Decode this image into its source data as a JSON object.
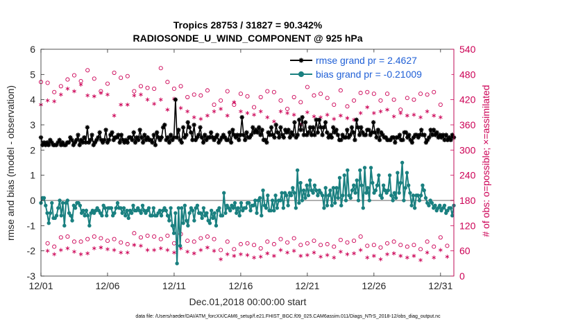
{
  "chart_data": {
    "type": "line",
    "title": "Tropics 28753 / 31827 = 90.342%",
    "subtitle": "RADIOSONDE_U_WIND_COMPONENT @ 925 hPa",
    "xlabel": "Dec.01,2018 00:00:00 start",
    "ylabel": "rmse and bias (model - observation)",
    "ylabel_right": "# of obs: o=possible; ×=assimilated",
    "footnote": "data file: /Users/raeder/DAI/ATM_forcXX/CAM6_setup/f.e21.FHIST_BGC.f09_025.CAM6assim.011/Diags_NTrS_2018-12/obs_diag_output.nc",
    "xlim": [
      1,
      32
    ],
    "ylim": [
      -3,
      6
    ],
    "ylim_right": [
      0,
      540
    ],
    "x_ticks": [
      1,
      6,
      11,
      16,
      21,
      26,
      31
    ],
    "x_tick_labels": [
      "12/01",
      "12/06",
      "12/11",
      "12/16",
      "12/21",
      "12/26",
      "12/31"
    ],
    "y_ticks": [
      -3,
      -2,
      -1,
      0,
      1,
      2,
      3,
      4,
      5,
      6
    ],
    "y_tick_labels": [
      "-3",
      "-2",
      "-1",
      "0",
      "1",
      "2",
      "3",
      "4",
      "5",
      "6"
    ],
    "y_ticks_right": [
      0,
      60,
      120,
      180,
      240,
      300,
      360,
      420,
      480,
      540
    ],
    "y_tick_labels_right": [
      "0",
      "60",
      "120",
      "180",
      "240",
      "300",
      "360",
      "420",
      "480",
      "540"
    ],
    "legend_position": "top-right",
    "zero_line": 0,
    "colors": {
      "rmse": "#000000",
      "bias": "#1a8080",
      "obs": "#cc0055",
      "zero": "#b0b0b0",
      "legend_text": "#1f5fd6"
    },
    "series": [
      {
        "name": "rmse grand pr = 2.4627",
        "axis": "left",
        "marker": "star",
        "values": [
          2.5,
          2.2,
          2.3,
          2.2,
          2.3,
          2.2,
          2.4,
          2.3,
          2.2,
          2.2,
          2.2,
          2.3,
          2.4,
          2.2,
          2.3,
          2.2,
          2.2,
          2.3,
          2.3,
          2.5,
          2.4,
          2.2,
          2.3,
          2.4,
          2.6,
          2.2,
          2.4,
          2.3,
          2.5,
          2.3,
          2.9,
          2.3,
          2.4,
          2.6,
          2.2,
          2.3,
          2.4,
          2.5,
          2.7,
          2.4,
          2.3,
          2.4,
          2.8,
          2.3,
          2.4,
          2.6,
          2.7,
          2.4,
          2.5,
          2.5,
          2.6,
          2.3,
          2.6,
          2.4,
          2.3,
          2.4,
          2.3,
          2.5,
          2.5,
          2.4,
          2.7,
          2.3,
          2.5,
          2.4,
          2.8,
          2.5,
          2.3,
          2.6,
          2.4,
          2.5,
          2.4,
          2.4,
          2.3,
          2.6,
          2.2,
          2.7,
          2.5,
          2.4,
          2.5,
          2.9,
          3.0,
          2.4,
          2.5,
          2.3,
          2.6,
          2.4,
          2.5,
          4.0,
          2.5,
          2.8,
          2.4,
          2.3,
          2.9,
          2.5,
          2.6,
          3.1,
          2.9,
          2.7,
          2.4,
          3.0,
          2.4,
          2.5,
          2.6,
          2.9,
          2.5,
          2.3,
          2.6,
          2.4,
          2.5,
          2.5,
          2.7,
          2.5,
          2.4,
          2.5,
          2.6,
          2.3,
          2.4,
          2.5,
          2.6,
          2.5,
          2.4,
          2.4,
          2.7,
          2.3,
          2.8,
          2.6,
          2.5,
          2.6,
          2.4,
          2.6,
          3.3,
          2.6,
          2.4,
          2.7,
          2.5,
          2.5,
          2.6,
          2.9,
          2.7,
          2.8,
          2.7,
          2.9,
          2.6,
          2.8,
          2.4,
          2.4,
          2.3,
          2.7,
          2.6,
          2.9,
          2.6,
          2.5,
          3.0,
          2.7,
          2.5,
          2.9,
          2.6,
          2.5,
          2.8,
          2.7,
          2.8,
          2.5,
          2.7,
          2.6,
          3.1,
          2.5,
          2.6,
          3.2,
          2.8,
          3.3,
          2.6,
          3.1,
          2.6,
          2.7,
          2.9,
          2.6,
          2.9,
          2.6,
          3.2,
          2.7,
          3.2,
          2.9,
          2.6,
          2.9,
          3.1,
          2.7,
          2.5,
          2.6,
          2.5,
          2.9,
          2.7,
          2.8,
          2.6,
          2.4,
          2.4,
          2.6,
          2.5,
          2.5,
          2.8,
          2.5,
          2.6,
          2.9,
          2.7,
          2.4,
          3.2,
          2.9,
          2.6,
          2.9,
          2.7,
          2.6,
          2.6,
          2.8,
          2.8,
          2.6,
          2.7,
          3.1,
          2.7,
          2.5,
          2.8,
          2.4,
          2.7,
          2.6,
          2.5,
          2.5,
          2.4,
          2.4,
          2.4,
          2.5,
          2.5,
          2.3,
          2.5,
          2.5,
          2.6,
          2.4,
          2.4,
          2.7,
          2.7,
          2.5,
          2.6,
          2.4,
          2.3,
          2.5,
          2.6,
          2.6,
          2.5,
          2.6,
          2.8,
          2.6,
          2.6,
          2.3,
          2.4,
          2.5,
          2.8,
          2.6,
          2.8,
          2.6,
          2.7,
          2.5,
          2.6,
          2.5,
          2.6,
          2.4,
          2.6,
          2.4,
          2.5,
          2.4,
          2.6,
          2.5
        ]
      },
      {
        "name": "bias grand pr = -0.21009",
        "axis": "left",
        "marker": "circle",
        "values": [
          -0.1,
          0.1,
          0.1,
          -0.2,
          -0.5,
          -0.9,
          -0.5,
          -0.1,
          -0.7,
          -0.7,
          -0.6,
          -0.3,
          0.0,
          -0.6,
          -0.1,
          -1.0,
          -0.1,
          0.0,
          -0.5,
          -0.6,
          -0.8,
          -0.2,
          -0.3,
          -0.1,
          -0.1,
          -0.2,
          -0.5,
          -0.4,
          -0.6,
          -0.4,
          -0.6,
          -1.0,
          -0.5,
          -0.4,
          -0.5,
          -0.4,
          -0.3,
          -0.4,
          -0.5,
          -0.6,
          -0.2,
          -0.3,
          -0.6,
          -0.3,
          -0.3,
          -0.3,
          -0.6,
          -0.5,
          -0.3,
          -0.1,
          -0.3,
          -0.3,
          -0.5,
          -0.3,
          -0.6,
          -0.4,
          -0.7,
          -0.4,
          -0.5,
          -0.2,
          -0.4,
          -0.4,
          -0.3,
          -0.4,
          -0.5,
          -0.2,
          -0.4,
          -0.5,
          -0.4,
          -0.3,
          -0.6,
          -0.6,
          -0.3,
          -0.6,
          -0.6,
          -0.5,
          -0.4,
          -0.6,
          -0.4,
          -0.3,
          -0.4,
          -0.6,
          -0.8,
          -0.3,
          -1.0,
          -1.3,
          -0.5,
          -2.5,
          -0.3,
          -1.8,
          -0.3,
          -0.9,
          -0.2,
          -0.8,
          -1.0,
          -0.5,
          -0.3,
          -0.4,
          -0.8,
          -0.3,
          -0.2,
          -0.5,
          -0.5,
          -0.7,
          -0.3,
          -0.6,
          -0.5,
          -0.8,
          -0.9,
          -0.4,
          -0.7,
          -0.5,
          -1.0,
          -0.4,
          -0.3,
          -0.6,
          -0.6,
          0.3,
          -0.5,
          -0.2,
          -0.3,
          -0.4,
          -0.2,
          -0.3,
          -0.1,
          -0.5,
          -0.3,
          -0.6,
          -0.1,
          -0.4,
          -0.3,
          -0.3,
          -0.1,
          -0.1,
          -0.4,
          -0.2,
          -0.2,
          0.0,
          -0.5,
          0.0,
          0.1,
          -0.6,
          0.4,
          -0.2,
          -0.3,
          0.2,
          -0.4,
          -0.4,
          0.0,
          -0.4,
          0.2,
          -0.3,
          0.0,
          0.0,
          0.3,
          -0.3,
          0.3,
          0.2,
          -0.2,
          0.3,
          0.2,
          0.5,
          0.3,
          -0.3,
          1.2,
          -0.1,
          0.7,
          0.0,
          0.4,
          0.1,
          0.6,
          0.2,
          0.8,
          0.4,
          0.3,
          0.6,
          0.4,
          0.2,
          0.4,
          0.3,
          0.2,
          -0.3,
          0.5,
          -0.2,
          0.2,
          0.4,
          -0.2,
          0.5,
          -0.1,
          0.5,
          0.1,
          0.9,
          -0.2,
          0.2,
          1.0,
          0.0,
          1.2,
          0.2,
          0.1,
          0.4,
          0.6,
          0.3,
          0.8,
          0.0,
          1.2,
          0.6,
          -0.3,
          1.3,
          0.3,
          0.5,
          0.0,
          1.3,
          0.7,
          0.3,
          0.4,
          0.6,
          1.0,
          0.2,
          0.1,
          0.6,
          0.4,
          0.3,
          0.4,
          1.0,
          0.2,
          0.0,
          0.3,
          0.1,
          1.1,
          0.3,
          0.7,
          1.5,
          0.0,
          0.5,
          1.1,
          0.6,
          0.3,
          -0.2,
          0.2,
          -0.3,
          0.2,
          0.2,
          0.0,
          0.2,
          0.6,
          0.4,
          0.1,
          -0.1,
          -0.2,
          0.0,
          -0.1,
          -0.3,
          -0.2,
          -0.4,
          -0.3,
          -0.2,
          -0.4,
          -0.3,
          -0.2,
          -0.5,
          -0.4,
          -0.3,
          -0.3,
          -0.6,
          -0.2
        ]
      },
      {
        "name": "possible obs (00Z)",
        "axis": "right",
        "marker": "open-circle",
        "values": [
          462,
          460,
          438,
          452,
          468,
          478,
          464,
          490,
          470,
          440,
          458,
          484,
          472,
          476,
          440,
          452,
          448,
          446,
          495,
          462,
          446,
          452,
          426,
          432,
          430,
          442,
          408,
          418,
          440,
          408,
          434,
          428,
          402,
          426,
          440,
          438,
          418,
          398,
          426,
          414,
          450,
          430,
          434,
          424,
          408,
          442,
          404,
          418,
          436,
          438,
          434,
          418,
          434,
          420,
          396,
          424,
          420,
          434,
          432,
          438,
          408
        ]
      },
      {
        "name": "assimilated obs (00Z)",
        "axis": "right",
        "marker": "asterisk",
        "values": [
          408,
          418,
          416,
          432,
          446,
          440,
          456,
          430,
          428,
          436,
          432,
          382,
          408,
          408,
          430,
          432,
          420,
          410,
          420,
          396,
          422,
          400,
          392,
          378,
          374,
          382,
          392,
          398,
          382,
          414,
          392,
          388,
          384,
          392,
          378,
          368,
          392,
          388,
          384,
          360,
          390,
          380,
          378,
          384,
          374,
          382,
          376,
          372,
          388,
          402,
          388,
          392,
          396,
          380,
          388,
          382,
          384,
          378,
          392,
          382,
          378
        ]
      },
      {
        "name": "possible obs (12Z)",
        "axis": "right",
        "marker": "open-circle",
        "values": [
          78,
          70,
          92,
          94,
          82,
          82,
          88,
          94,
          90,
          84,
          88,
          80,
          76,
          102,
          92,
          96,
          94,
          88,
          96,
          78,
          100,
          84,
          82,
          90,
          94,
          88,
          62,
          82,
          64,
          76,
          78,
          74,
          66,
          82,
          76,
          88,
          80,
          90,
          74,
          78,
          84,
          74,
          76,
          70,
          86,
          80,
          84,
          94,
          72,
          74,
          68,
          78,
          82,
          74,
          70,
          74,
          64,
          82,
          70,
          92,
          72
        ]
      },
      {
        "name": "assimilated obs (12Z)",
        "axis": "right",
        "marker": "asterisk",
        "values": [
          60,
          52,
          62,
          66,
          58,
          52,
          54,
          66,
          68,
          64,
          62,
          56,
          56,
          74,
          72,
          62,
          62,
          66,
          62,
          56,
          66,
          58,
          54,
          62,
          68,
          60,
          40,
          52,
          48,
          52,
          50,
          44,
          46,
          54,
          48,
          62,
          56,
          60,
          48,
          50,
          56,
          46,
          50,
          44,
          58,
          52,
          54,
          62,
          44,
          48,
          40,
          52,
          54,
          48,
          44,
          48,
          38,
          56,
          44,
          62,
          46
        ]
      }
    ]
  }
}
